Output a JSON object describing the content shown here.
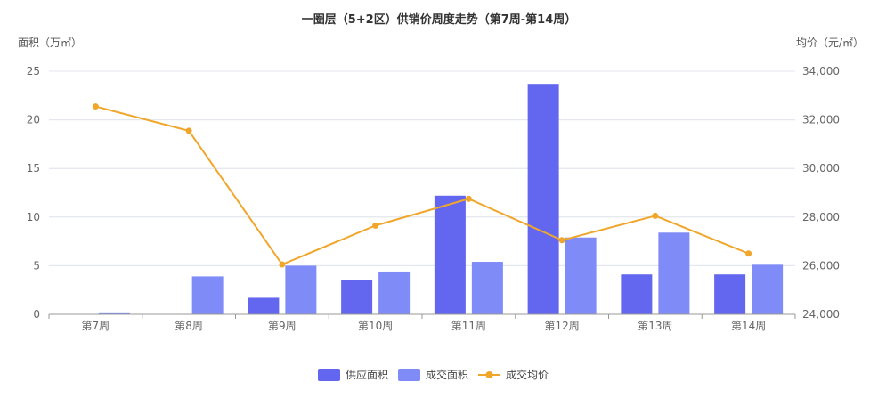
{
  "colors": {
    "supply": "#6366ef",
    "sales": "#7f8cf7",
    "price": "#f0a62a",
    "grid": "#e3e7ee",
    "axis": "#999999"
  },
  "chart_data": {
    "type": "bar",
    "title": "一圈层（5+2区）供销价周度走势（第7周-第14周）",
    "ylabel_left": "面积（万㎡）",
    "ylabel_right": "均价（元/㎡）",
    "categories": [
      "第7周",
      "第8周",
      "第9周",
      "第10周",
      "第11周",
      "第12周",
      "第13周",
      "第14周"
    ],
    "ylim_left": [
      0,
      25
    ],
    "ylim_right": [
      24000,
      34000
    ],
    "yticks_left": [
      "0",
      "5",
      "10",
      "15",
      "20",
      "25"
    ],
    "yticks_right": [
      "24,000",
      "26,000",
      "28,000",
      "30,000",
      "32,000",
      "34,000"
    ],
    "grid": true,
    "legend_position": "bottom",
    "series": [
      {
        "name": "供应面积",
        "type": "bar",
        "axis": "left",
        "values": [
          0,
          0,
          1.7,
          3.5,
          12.2,
          23.7,
          4.1,
          4.1
        ]
      },
      {
        "name": "成交面积",
        "type": "bar",
        "axis": "left",
        "values": [
          0.2,
          3.9,
          5.0,
          4.4,
          5.4,
          7.9,
          8.4,
          5.1
        ]
      },
      {
        "name": "成交均价",
        "type": "line",
        "axis": "right",
        "values": [
          32550,
          31550,
          26050,
          27650,
          28750,
          27050,
          28050,
          26500
        ]
      }
    ]
  }
}
